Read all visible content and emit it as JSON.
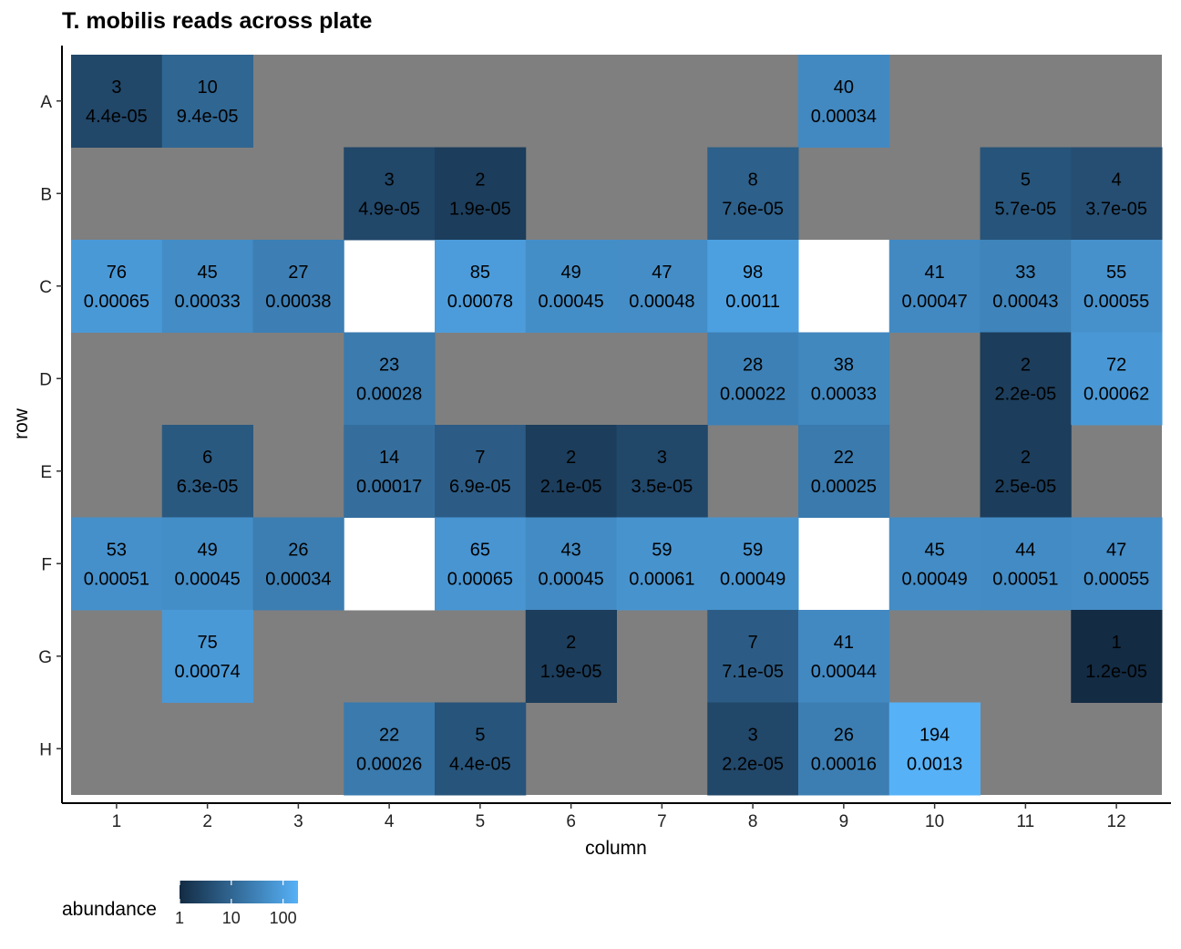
{
  "chart_data": {
    "type": "heatmap",
    "title": "T. mobilis reads across plate",
    "xlabel": "column",
    "ylabel": "row",
    "columns": [
      "1",
      "2",
      "3",
      "4",
      "5",
      "6",
      "7",
      "8",
      "9",
      "10",
      "11",
      "12"
    ],
    "rows": [
      "A",
      "B",
      "C",
      "D",
      "E",
      "F",
      "G",
      "H"
    ],
    "cells": [
      {
        "row": "A",
        "col": "1",
        "reads": "3",
        "fraction": "4.4e-05"
      },
      {
        "row": "A",
        "col": "2",
        "reads": "10",
        "fraction": "9.4e-05"
      },
      {
        "row": "A",
        "col": "9",
        "reads": "40",
        "fraction": "0.00034"
      },
      {
        "row": "B",
        "col": "4",
        "reads": "3",
        "fraction": "4.9e-05"
      },
      {
        "row": "B",
        "col": "5",
        "reads": "2",
        "fraction": "1.9e-05"
      },
      {
        "row": "B",
        "col": "8",
        "reads": "8",
        "fraction": "7.6e-05"
      },
      {
        "row": "B",
        "col": "11",
        "reads": "5",
        "fraction": "5.7e-05"
      },
      {
        "row": "B",
        "col": "12",
        "reads": "4",
        "fraction": "3.7e-05"
      },
      {
        "row": "C",
        "col": "1",
        "reads": "76",
        "fraction": "0.00065"
      },
      {
        "row": "C",
        "col": "2",
        "reads": "45",
        "fraction": "0.00033"
      },
      {
        "row": "C",
        "col": "3",
        "reads": "27",
        "fraction": "0.00038"
      },
      {
        "row": "C",
        "col": "5",
        "reads": "85",
        "fraction": "0.00078"
      },
      {
        "row": "C",
        "col": "6",
        "reads": "49",
        "fraction": "0.00045"
      },
      {
        "row": "C",
        "col": "7",
        "reads": "47",
        "fraction": "0.00048"
      },
      {
        "row": "C",
        "col": "8",
        "reads": "98",
        "fraction": "0.0011"
      },
      {
        "row": "C",
        "col": "10",
        "reads": "41",
        "fraction": "0.00047"
      },
      {
        "row": "C",
        "col": "11",
        "reads": "33",
        "fraction": "0.00043"
      },
      {
        "row": "C",
        "col": "12",
        "reads": "55",
        "fraction": "0.00055"
      },
      {
        "row": "D",
        "col": "4",
        "reads": "23",
        "fraction": "0.00028"
      },
      {
        "row": "D",
        "col": "8",
        "reads": "28",
        "fraction": "0.00022"
      },
      {
        "row": "D",
        "col": "9",
        "reads": "38",
        "fraction": "0.00033"
      },
      {
        "row": "D",
        "col": "11",
        "reads": "2",
        "fraction": "2.2e-05"
      },
      {
        "row": "D",
        "col": "12",
        "reads": "72",
        "fraction": "0.00062"
      },
      {
        "row": "E",
        "col": "2",
        "reads": "6",
        "fraction": "6.3e-05"
      },
      {
        "row": "E",
        "col": "4",
        "reads": "14",
        "fraction": "0.00017"
      },
      {
        "row": "E",
        "col": "5",
        "reads": "7",
        "fraction": "6.9e-05"
      },
      {
        "row": "E",
        "col": "6",
        "reads": "2",
        "fraction": "2.1e-05"
      },
      {
        "row": "E",
        "col": "7",
        "reads": "3",
        "fraction": "3.5e-05"
      },
      {
        "row": "E",
        "col": "9",
        "reads": "22",
        "fraction": "0.00025"
      },
      {
        "row": "E",
        "col": "11",
        "reads": "2",
        "fraction": "2.5e-05"
      },
      {
        "row": "F",
        "col": "1",
        "reads": "53",
        "fraction": "0.00051"
      },
      {
        "row": "F",
        "col": "2",
        "reads": "49",
        "fraction": "0.00045"
      },
      {
        "row": "F",
        "col": "3",
        "reads": "26",
        "fraction": "0.00034"
      },
      {
        "row": "F",
        "col": "5",
        "reads": "65",
        "fraction": "0.00065"
      },
      {
        "row": "F",
        "col": "6",
        "reads": "43",
        "fraction": "0.00045"
      },
      {
        "row": "F",
        "col": "7",
        "reads": "59",
        "fraction": "0.00061"
      },
      {
        "row": "F",
        "col": "8",
        "reads": "59",
        "fraction": "0.00049"
      },
      {
        "row": "F",
        "col": "10",
        "reads": "45",
        "fraction": "0.00049"
      },
      {
        "row": "F",
        "col": "11",
        "reads": "44",
        "fraction": "0.00051"
      },
      {
        "row": "F",
        "col": "12",
        "reads": "47",
        "fraction": "0.00055"
      },
      {
        "row": "G",
        "col": "2",
        "reads": "75",
        "fraction": "0.00074"
      },
      {
        "row": "G",
        "col": "6",
        "reads": "2",
        "fraction": "1.9e-05"
      },
      {
        "row": "G",
        "col": "8",
        "reads": "7",
        "fraction": "7.1e-05"
      },
      {
        "row": "G",
        "col": "9",
        "reads": "41",
        "fraction": "0.00044"
      },
      {
        "row": "G",
        "col": "12",
        "reads": "1",
        "fraction": "1.2e-05"
      },
      {
        "row": "H",
        "col": "4",
        "reads": "22",
        "fraction": "0.00026"
      },
      {
        "row": "H",
        "col": "5",
        "reads": "5",
        "fraction": "4.4e-05"
      },
      {
        "row": "H",
        "col": "8",
        "reads": "3",
        "fraction": "2.2e-05"
      },
      {
        "row": "H",
        "col": "9",
        "reads": "26",
        "fraction": "0.00016"
      },
      {
        "row": "H",
        "col": "10",
        "reads": "194",
        "fraction": "0.0013"
      }
    ],
    "blank_wells": [
      {
        "row": "C",
        "col": "4"
      },
      {
        "row": "C",
        "col": "9"
      },
      {
        "row": "F",
        "col": "4"
      },
      {
        "row": "F",
        "col": "9"
      }
    ],
    "legend": {
      "title": "abundance",
      "scale": "log",
      "ticks": [
        "1",
        "10",
        "100"
      ],
      "tick_values": [
        1,
        10,
        100
      ],
      "range": [
        1,
        194
      ],
      "placement": "bottom-left"
    },
    "colors": {
      "low": "#132B43",
      "high": "#56B1F7",
      "na": "#7F7F7F",
      "blank": "#FFFFFF"
    }
  }
}
